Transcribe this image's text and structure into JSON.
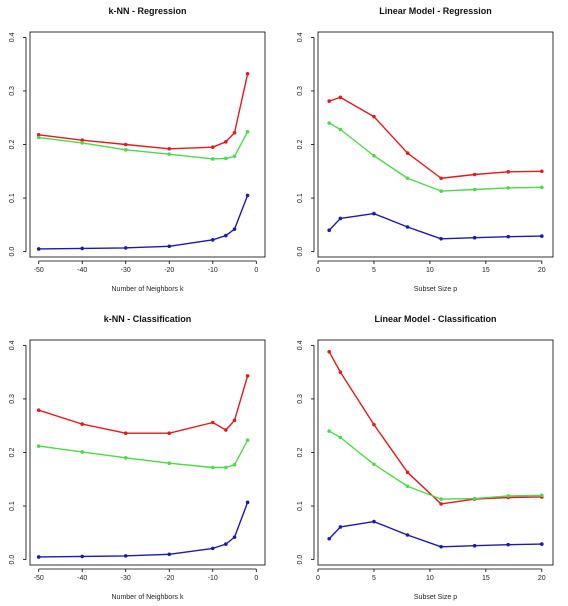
{
  "chart_data": [
    {
      "type": "line",
      "title": "k-NN - Regression",
      "xlabel": "Number of Neighbors k",
      "ylabel": "",
      "xlim": [
        -52,
        2
      ],
      "ylim": [
        -0.01,
        0.41
      ],
      "xticks": [
        -50,
        -40,
        -30,
        -20,
        -10,
        0
      ],
      "xtick_labels": [
        "-50",
        "-40",
        "-30",
        "-20",
        "-10",
        "0"
      ],
      "yticks": [
        0.0,
        0.1,
        0.2,
        0.3,
        0.4
      ],
      "ytick_labels": [
        "0.0",
        "0.1",
        "0.2",
        "0.3",
        "0.4"
      ],
      "grid": false,
      "series": [
        {
          "color": "#e31a1c",
          "x": [
            -50,
            -40,
            -30,
            -20,
            -10,
            -7,
            -5,
            -2
          ],
          "y": [
            0.218,
            0.208,
            0.2,
            0.192,
            0.195,
            0.205,
            0.222,
            0.332
          ]
        },
        {
          "color": "#4cd94c",
          "x": [
            -50,
            -40,
            -30,
            -20,
            -10,
            -7,
            -5,
            -2
          ],
          "y": [
            0.213,
            0.203,
            0.19,
            0.182,
            0.173,
            0.174,
            0.178,
            0.224
          ]
        },
        {
          "color": "#1a1ab3",
          "x": [
            -50,
            -40,
            -30,
            -20,
            -10,
            -7,
            -5,
            -2
          ],
          "y": [
            0.005,
            0.006,
            0.007,
            0.01,
            0.022,
            0.03,
            0.042,
            0.105
          ]
        }
      ]
    },
    {
      "type": "line",
      "title": "Linear Model - Regression",
      "xlabel": "Subset Size p",
      "ylabel": "",
      "xlim": [
        0,
        21
      ],
      "ylim": [
        -0.01,
        0.41
      ],
      "xticks": [
        0,
        5,
        10,
        15,
        20
      ],
      "xtick_labels": [
        "0",
        "5",
        "10",
        "15",
        "20"
      ],
      "yticks": [
        0.0,
        0.1,
        0.2,
        0.3,
        0.4
      ],
      "ytick_labels": [
        "0.0",
        "0.1",
        "0.2",
        "0.3",
        "0.4"
      ],
      "grid": false,
      "series": [
        {
          "color": "#e31a1c",
          "x": [
            1,
            2,
            5,
            8,
            11,
            14,
            17,
            20
          ],
          "y": [
            0.281,
            0.288,
            0.252,
            0.184,
            0.137,
            0.144,
            0.149,
            0.15
          ]
        },
        {
          "color": "#4cd94c",
          "x": [
            1,
            2,
            5,
            8,
            11,
            14,
            17,
            20
          ],
          "y": [
            0.24,
            0.228,
            0.179,
            0.137,
            0.113,
            0.116,
            0.119,
            0.12
          ]
        },
        {
          "color": "#1a1ab3",
          "x": [
            1,
            2,
            5,
            8,
            11,
            14,
            17,
            20
          ],
          "y": [
            0.04,
            0.062,
            0.071,
            0.046,
            0.024,
            0.026,
            0.028,
            0.029
          ]
        }
      ]
    },
    {
      "type": "line",
      "title": "k-NN - Classification",
      "xlabel": "Number of Neighbors k",
      "ylabel": "",
      "xlim": [
        -52,
        2
      ],
      "ylim": [
        -0.01,
        0.41
      ],
      "xticks": [
        -50,
        -40,
        -30,
        -20,
        -10,
        0
      ],
      "xtick_labels": [
        "-50",
        "-40",
        "-30",
        "-20",
        "-10",
        "0"
      ],
      "yticks": [
        0.0,
        0.1,
        0.2,
        0.3,
        0.4
      ],
      "ytick_labels": [
        "0.0",
        "0.1",
        "0.2",
        "0.3",
        "0.4"
      ],
      "grid": false,
      "series": [
        {
          "color": "#e31a1c",
          "x": [
            -50,
            -40,
            -30,
            -20,
            -10,
            -7,
            -5,
            -2
          ],
          "y": [
            0.279,
            0.253,
            0.236,
            0.236,
            0.256,
            0.242,
            0.26,
            0.343
          ]
        },
        {
          "color": "#4cd94c",
          "x": [
            -50,
            -40,
            -30,
            -20,
            -10,
            -7,
            -5,
            -2
          ],
          "y": [
            0.212,
            0.201,
            0.19,
            0.18,
            0.172,
            0.172,
            0.177,
            0.223
          ]
        },
        {
          "color": "#1a1ab3",
          "x": [
            -50,
            -40,
            -30,
            -20,
            -10,
            -7,
            -5,
            -2
          ],
          "y": [
            0.005,
            0.006,
            0.007,
            0.01,
            0.021,
            0.029,
            0.042,
            0.107
          ]
        }
      ]
    },
    {
      "type": "line",
      "title": "Linear Model - Classification",
      "xlabel": "Subset Size p",
      "ylabel": "",
      "xlim": [
        0,
        21
      ],
      "ylim": [
        -0.01,
        0.41
      ],
      "xticks": [
        0,
        5,
        10,
        15,
        20
      ],
      "xtick_labels": [
        "0",
        "5",
        "10",
        "15",
        "20"
      ],
      "yticks": [
        0.0,
        0.1,
        0.2,
        0.3,
        0.4
      ],
      "ytick_labels": [
        "0.0",
        "0.1",
        "0.2",
        "0.3",
        "0.4"
      ],
      "grid": false,
      "series": [
        {
          "color": "#e31a1c",
          "x": [
            1,
            2,
            5,
            8,
            11,
            14,
            17,
            20
          ],
          "y": [
            0.388,
            0.35,
            0.252,
            0.163,
            0.104,
            0.113,
            0.116,
            0.117
          ]
        },
        {
          "color": "#4cd94c",
          "x": [
            1,
            2,
            5,
            8,
            11,
            14,
            17,
            20
          ],
          "y": [
            0.24,
            0.228,
            0.178,
            0.137,
            0.113,
            0.114,
            0.119,
            0.12
          ]
        },
        {
          "color": "#1a1ab3",
          "x": [
            1,
            2,
            5,
            8,
            11,
            14,
            17,
            20
          ],
          "y": [
            0.039,
            0.061,
            0.071,
            0.046,
            0.024,
            0.026,
            0.028,
            0.029
          ]
        }
      ]
    }
  ]
}
